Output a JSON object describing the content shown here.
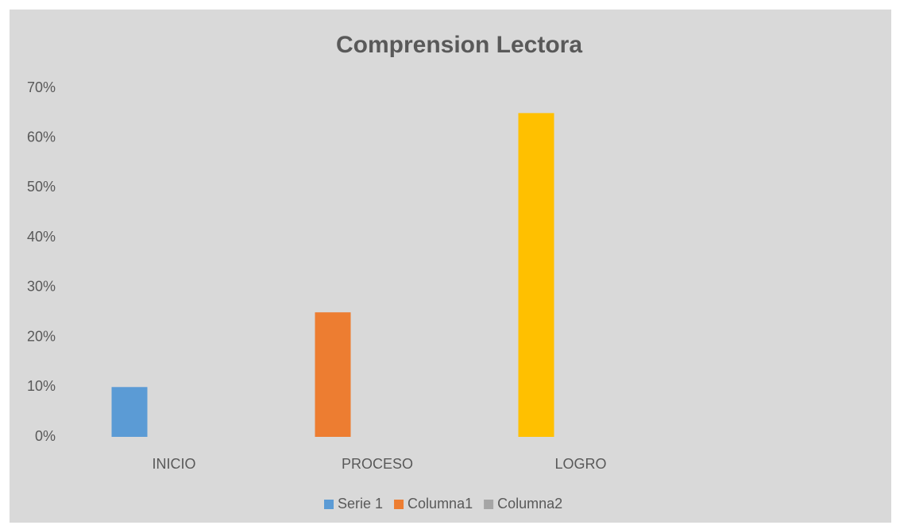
{
  "chart_data": {
    "type": "bar",
    "title": "Comprension Lectora",
    "categories": [
      "INICIO",
      "PROCESO",
      "LOGRO",
      null
    ],
    "series": [
      {
        "name": "Serie 1",
        "color": "#5b9bd5",
        "point_colors": [
          "#5b9bd5",
          "#ed7d31",
          "#ffc000",
          "#5b9bd5"
        ],
        "values": [
          10,
          25,
          65,
          null
        ]
      },
      {
        "name": "Columna1",
        "color": "#ed7d31",
        "values": [
          null,
          null,
          null,
          null
        ]
      },
      {
        "name": "Columna2",
        "color": "#a5a5a5",
        "values": [
          null,
          null,
          null,
          null
        ]
      }
    ],
    "ylim": [
      0,
      70
    ],
    "yticks": [
      {
        "value": 0,
        "label": "0%"
      },
      {
        "value": 10,
        "label": "10%"
      },
      {
        "value": 20,
        "label": "20%"
      },
      {
        "value": 30,
        "label": "30%"
      },
      {
        "value": 40,
        "label": "40%"
      },
      {
        "value": 50,
        "label": "50%"
      },
      {
        "value": 60,
        "label": "60%"
      },
      {
        "value": 70,
        "label": "70%"
      }
    ],
    "grid": false,
    "legend": "bottom"
  }
}
